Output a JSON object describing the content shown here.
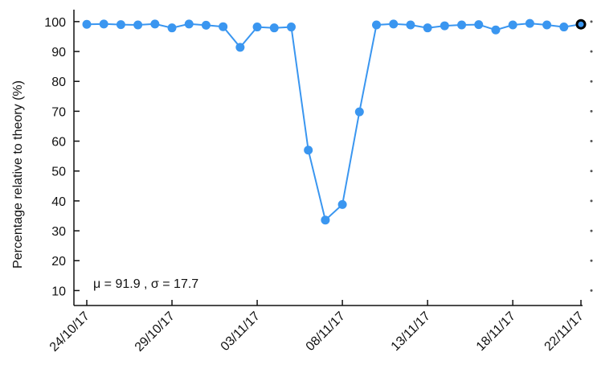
{
  "chart_data": {
    "type": "line",
    "title": "",
    "xlabel": "",
    "ylabel": "Percentage relative to theory (%)",
    "ylim": [
      5,
      104
    ],
    "yticks": [
      10,
      20,
      30,
      40,
      50,
      60,
      70,
      80,
      90,
      100
    ],
    "xlim": [
      "2017-10-24",
      "2017-11-22"
    ],
    "xtick_labels": [
      "24/10/17",
      "29/10/17",
      "03/11/17",
      "08/11/17",
      "13/11/17",
      "18/11/17",
      "22/11/17"
    ],
    "xtick_dates": [
      "2017-10-24",
      "2017-10-29",
      "2017-11-03",
      "2017-11-08",
      "2017-11-13",
      "2017-11-18",
      "2017-11-22"
    ],
    "grid": false,
    "line_color": "#3a96f0",
    "highlight_color": "#000000",
    "series": [
      {
        "x": [
          "2017-10-24",
          "2017-10-25",
          "2017-10-26",
          "2017-10-27",
          "2017-10-28",
          "2017-10-29",
          "2017-10-30",
          "2017-10-31",
          "2017-11-01",
          "2017-11-02",
          "2017-11-03",
          "2017-11-04",
          "2017-11-05",
          "2017-11-06",
          "2017-11-07",
          "2017-11-08",
          "2017-11-09",
          "2017-11-10",
          "2017-11-11",
          "2017-11-12",
          "2017-11-13",
          "2017-11-14",
          "2017-11-15",
          "2017-11-16",
          "2017-11-17",
          "2017-11-18",
          "2017-11-19",
          "2017-11-20",
          "2017-11-21",
          "2017-11-22"
        ],
        "y": [
          99.1,
          99.2,
          99.0,
          98.9,
          99.2,
          97.9,
          99.2,
          98.8,
          98.3,
          91.4,
          98.2,
          97.9,
          98.2,
          57.0,
          33.6,
          38.8,
          69.8,
          98.9,
          99.2,
          98.9,
          97.9,
          98.6,
          98.9,
          99.0,
          97.2,
          98.9,
          99.4,
          98.9,
          98.2,
          99.1
        ]
      }
    ],
    "highlighted_point": "2017-11-22",
    "annotations": [
      {
        "text": "μ = 91.9 , σ = 17.7"
      }
    ]
  }
}
